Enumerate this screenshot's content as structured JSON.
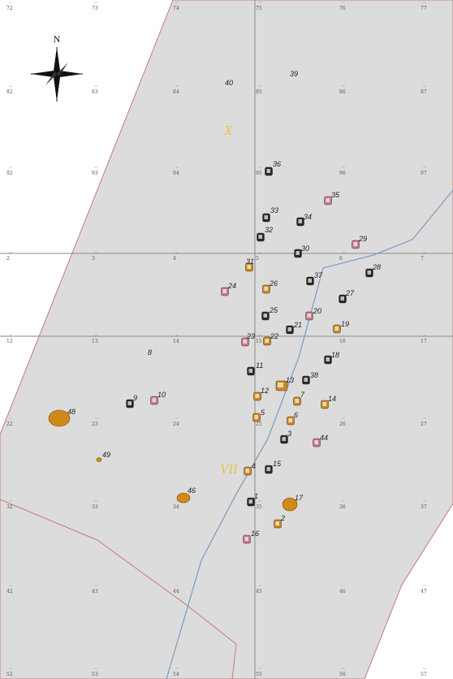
{
  "map": {
    "colors": {
      "background": "#ffffff",
      "area_fill": "#dcdcdc",
      "area_stroke": "#c87878",
      "river": "#7f9fc0",
      "major_grid": "#8a8a8a",
      "minor_cross": "#999999",
      "sector_label": "#e6c24a",
      "orange": "#d08a18",
      "dark": "#2e2622",
      "pink": "#c67b86"
    },
    "compass": {
      "north_label": "N"
    },
    "sector_labels": [
      "X",
      "VII"
    ],
    "grid_labels": {
      "row_1": [
        "72",
        "73",
        "74",
        "75",
        "76",
        "77"
      ],
      "row_2": [
        "82",
        "83",
        "84",
        "85",
        "86",
        "87"
      ],
      "row_3": [
        "92",
        "93",
        "94",
        "95",
        "96",
        "97"
      ],
      "row_4": [
        "2",
        "3",
        "4",
        "5",
        "6",
        "7"
      ],
      "row_5": [
        "12",
        "13",
        "14",
        "15",
        "16",
        "17"
      ],
      "row_6": [
        "22",
        "23",
        "24",
        "25",
        "26",
        "27"
      ],
      "row_7": [
        "32",
        "33",
        "34",
        "35",
        "36",
        "37"
      ],
      "row_8": [
        "42",
        "43",
        "44",
        "45",
        "46",
        "47"
      ],
      "row_9": [
        "52",
        "53",
        "54",
        "55",
        "56",
        "57"
      ]
    },
    "features": [
      {
        "label": "40",
        "kind": "none"
      },
      {
        "label": "39",
        "kind": "none"
      },
      {
        "label": "36",
        "kind": "dark"
      },
      {
        "label": "35",
        "kind": "pink"
      },
      {
        "label": "33",
        "kind": "dark"
      },
      {
        "label": "34",
        "kind": "dark"
      },
      {
        "label": "32",
        "kind": "dark"
      },
      {
        "label": "30",
        "kind": "dark"
      },
      {
        "label": "29",
        "kind": "pink"
      },
      {
        "label": "28",
        "kind": "dark"
      },
      {
        "label": "31",
        "kind": "orange"
      },
      {
        "label": "37",
        "kind": "dark"
      },
      {
        "label": "24",
        "kind": "pink"
      },
      {
        "label": "26",
        "kind": "orange"
      },
      {
        "label": "27",
        "kind": "dark"
      },
      {
        "label": "25",
        "kind": "dark"
      },
      {
        "label": "20",
        "kind": "pink"
      },
      {
        "label": "21",
        "kind": "dark"
      },
      {
        "label": "19",
        "kind": "orange"
      },
      {
        "label": "23",
        "kind": "pink"
      },
      {
        "label": "22",
        "kind": "orange"
      },
      {
        "label": "18",
        "kind": "dark"
      },
      {
        "label": "11",
        "kind": "dark"
      },
      {
        "label": "13",
        "kind": "orange"
      },
      {
        "label": "38",
        "kind": "dark"
      },
      {
        "label": "12",
        "kind": "orange"
      },
      {
        "label": "7",
        "kind": "orange"
      },
      {
        "label": "14",
        "kind": "orange"
      },
      {
        "label": "9",
        "kind": "dark"
      },
      {
        "label": "10",
        "kind": "pink"
      },
      {
        "label": "8",
        "kind": "none"
      },
      {
        "label": "48",
        "kind": "orange"
      },
      {
        "label": "5",
        "kind": "orange"
      },
      {
        "label": "6",
        "kind": "orange"
      },
      {
        "label": "3",
        "kind": "dark"
      },
      {
        "label": "44",
        "kind": "pink"
      },
      {
        "label": "49",
        "kind": "orange"
      },
      {
        "label": "4",
        "kind": "orange"
      },
      {
        "label": "15",
        "kind": "dark"
      },
      {
        "label": "46",
        "kind": "orange"
      },
      {
        "label": "1",
        "kind": "dark"
      },
      {
        "label": "17",
        "kind": "orange"
      },
      {
        "label": "2",
        "kind": "orange"
      },
      {
        "label": "16",
        "kind": "pink"
      },
      {
        "label": "",
        "kind": "dark"
      }
    ]
  }
}
